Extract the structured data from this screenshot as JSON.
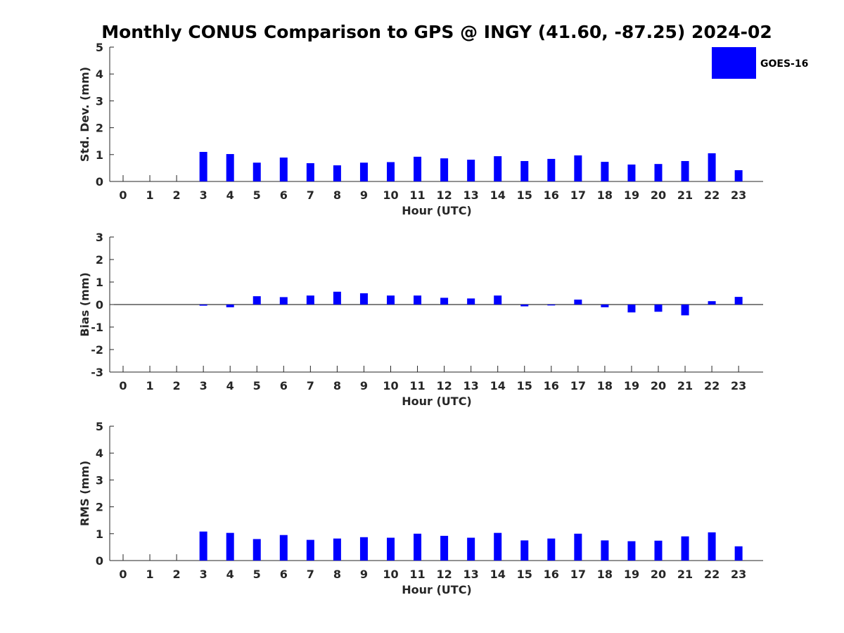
{
  "chart_data": [
    {
      "type": "bar",
      "title": "Monthly CONUS Comparison to GPS @ INGY (41.60, -87.25) 2024-02",
      "xlabel": "Hour (UTC)",
      "ylabel": "Std. Dev. (mm)",
      "ylim": [
        0,
        5
      ],
      "yticks": [
        0,
        1,
        2,
        3,
        4,
        5
      ],
      "categories": [
        "0",
        "1",
        "2",
        "3",
        "4",
        "5",
        "6",
        "7",
        "8",
        "9",
        "10",
        "11",
        "12",
        "13",
        "14",
        "15",
        "16",
        "17",
        "18",
        "19",
        "20",
        "21",
        "22",
        "23"
      ],
      "series": [
        {
          "name": "GOES-16",
          "color": "#0000ff",
          "values": [
            null,
            null,
            null,
            1.1,
            1.02,
            0.7,
            0.89,
            0.68,
            0.6,
            0.7,
            0.72,
            0.92,
            0.86,
            0.81,
            0.94,
            0.76,
            0.84,
            0.97,
            0.73,
            0.63,
            0.65,
            0.76,
            1.05,
            0.42
          ]
        }
      ],
      "legend": {
        "position": "top-right",
        "entries": [
          "GOES-16"
        ]
      }
    },
    {
      "type": "bar",
      "xlabel": "Hour (UTC)",
      "ylabel": "Bias (mm)",
      "ylim": [
        -3,
        3
      ],
      "yticks": [
        -3,
        -2,
        -1,
        0,
        1,
        2,
        3
      ],
      "categories": [
        "0",
        "1",
        "2",
        "3",
        "4",
        "5",
        "6",
        "7",
        "8",
        "9",
        "10",
        "11",
        "12",
        "13",
        "14",
        "15",
        "16",
        "17",
        "18",
        "19",
        "20",
        "21",
        "22",
        "23"
      ],
      "series": [
        {
          "name": "GOES-16",
          "color": "#0000ff",
          "values": [
            null,
            null,
            null,
            -0.05,
            -0.12,
            0.37,
            0.33,
            0.4,
            0.57,
            0.5,
            0.4,
            0.4,
            0.3,
            0.27,
            0.4,
            -0.08,
            -0.04,
            0.22,
            -0.12,
            -0.35,
            -0.32,
            -0.48,
            0.15,
            0.34
          ]
        }
      ]
    },
    {
      "type": "bar",
      "xlabel": "Hour (UTC)",
      "ylabel": "RMS (mm)",
      "ylim": [
        0,
        5
      ],
      "yticks": [
        0,
        1,
        2,
        3,
        4,
        5
      ],
      "categories": [
        "0",
        "1",
        "2",
        "3",
        "4",
        "5",
        "6",
        "7",
        "8",
        "9",
        "10",
        "11",
        "12",
        "13",
        "14",
        "15",
        "16",
        "17",
        "18",
        "19",
        "20",
        "21",
        "22",
        "23"
      ],
      "series": [
        {
          "name": "GOES-16",
          "color": "#0000ff",
          "values": [
            null,
            null,
            null,
            1.08,
            1.03,
            0.8,
            0.95,
            0.77,
            0.82,
            0.87,
            0.85,
            1.0,
            0.92,
            0.85,
            1.03,
            0.75,
            0.82,
            1.0,
            0.75,
            0.72,
            0.74,
            0.9,
            1.05,
            0.53
          ]
        }
      ]
    }
  ]
}
